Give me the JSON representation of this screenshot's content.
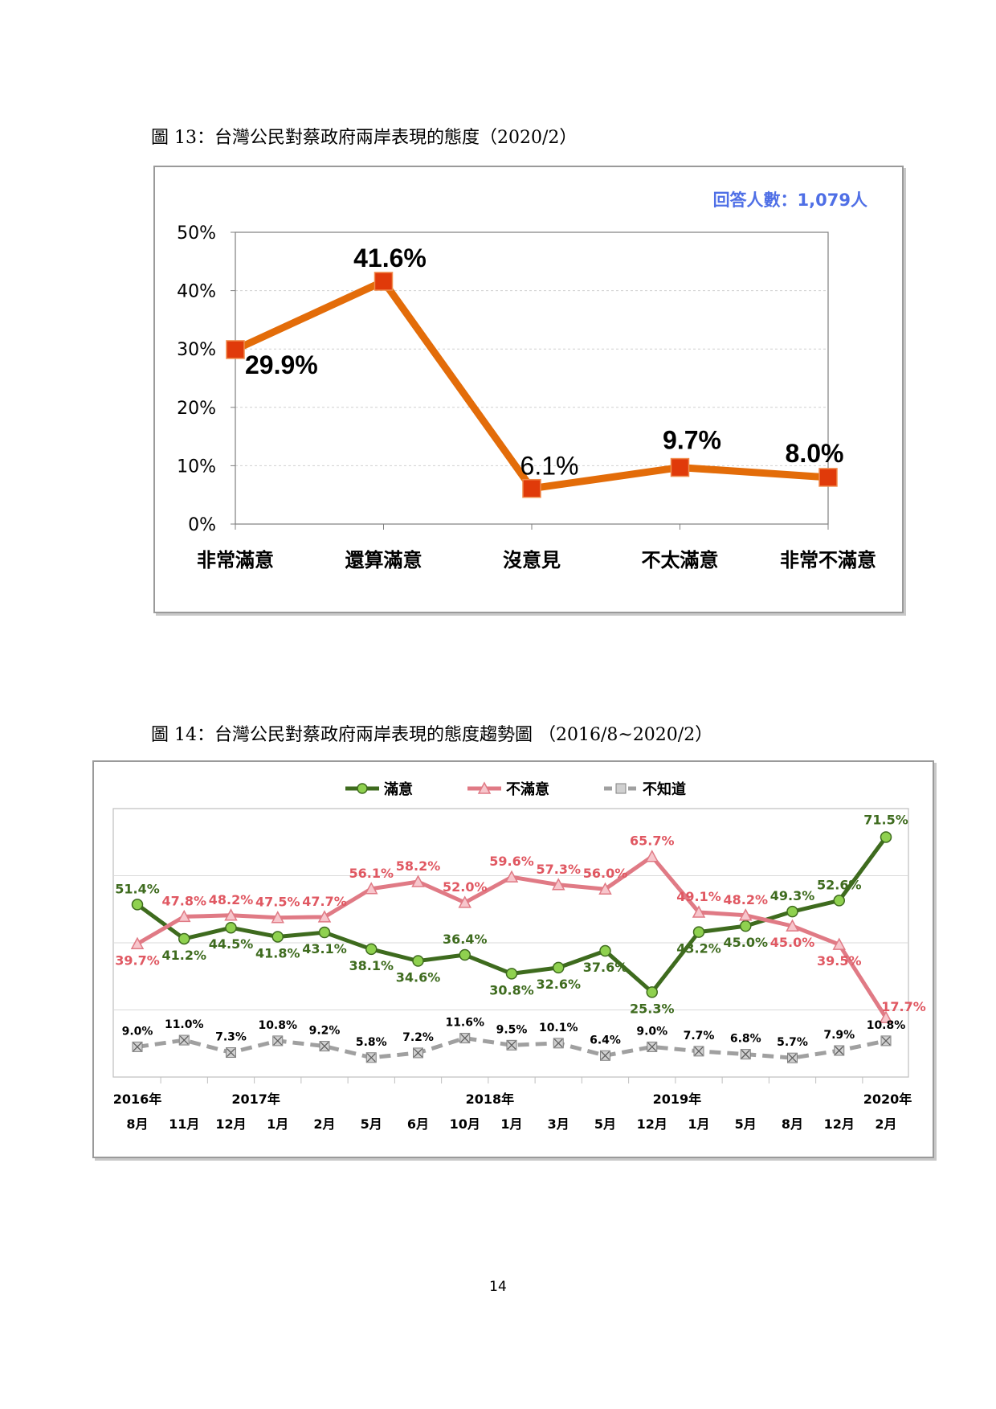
{
  "figure13": {
    "caption": "圖 13：台灣公民對蔡政府兩岸表現的態度（2020/2）",
    "respondents": "回答人數：1,079人",
    "chart_data": {
      "type": "line",
      "categories": [
        "非常滿意",
        "還算滿意",
        "沒意見",
        "不太滿意",
        "非常不滿意"
      ],
      "values": [
        29.9,
        41.6,
        6.1,
        9.7,
        8.0
      ],
      "data_labels": [
        "29.9%",
        "41.6%",
        "6.1%",
        "9.7%",
        "8.0%"
      ],
      "y_ticks": [
        "0%",
        "10%",
        "20%",
        "30%",
        "40%",
        "50%"
      ],
      "ylim": [
        0,
        50
      ],
      "grid": true,
      "colors": {
        "line": "#E36C09",
        "marker": "#E03A0A",
        "respondents": "#4F6FE6"
      }
    }
  },
  "figure14": {
    "caption": "圖 14：台灣公民對蔡政府兩岸表現的態度趨勢圖 （2016/8~2020/2）",
    "chart_data": {
      "type": "line",
      "x_months": [
        "8月",
        "11月",
        "12月",
        "1月",
        "2月",
        "5月",
        "6月",
        "10月",
        "1月",
        "3月",
        "5月",
        "12月",
        "1月",
        "5月",
        "8月",
        "12月",
        "2月"
      ],
      "x_years": [
        {
          "label": "2016年",
          "index": 0
        },
        {
          "label": "2017年",
          "index": 3
        },
        {
          "label": "2018年",
          "index": 8
        },
        {
          "label": "2019年",
          "index": 12
        },
        {
          "label": "2020年",
          "index": 16
        }
      ],
      "ylim": [
        0,
        80
      ],
      "grid": true,
      "legend_position": "top",
      "series": [
        {
          "name": "滿意",
          "color": "#3E6B1E",
          "marker": "circle",
          "values": [
            51.4,
            41.2,
            44.5,
            41.8,
            43.1,
            38.1,
            34.6,
            36.4,
            30.8,
            32.6,
            37.6,
            25.3,
            43.2,
            45.0,
            49.3,
            52.6,
            71.5
          ],
          "labels": [
            "51.4%",
            "41.2%",
            "44.5%",
            "41.8%",
            "43.1%",
            "38.1%",
            "34.6%",
            "36.4%",
            "30.8%",
            "32.6%",
            "37.6%",
            "25.3%",
            "43.2%",
            "45.0%",
            "49.3%",
            "52.6%",
            "71.5%"
          ]
        },
        {
          "name": "不滿意",
          "color": "#E07A85",
          "marker": "triangle",
          "values": [
            39.7,
            47.8,
            48.2,
            47.5,
            47.7,
            56.1,
            58.2,
            52.0,
            59.6,
            57.3,
            56.0,
            65.7,
            49.1,
            48.2,
            45.0,
            39.5,
            17.7
          ],
          "labels": [
            "39.7%",
            "47.8%",
            "48.2%",
            "47.5%",
            "47.7%",
            "56.1%",
            "58.2%",
            "52.0%",
            "59.6%",
            "57.3%",
            "56.0%",
            "65.7%",
            "49.1%",
            "48.2%",
            "45.0%",
            "39.5%",
            "17.7%"
          ]
        },
        {
          "name": "不知道",
          "color": "#A0A0A0",
          "marker": "x-square",
          "values": [
            9.0,
            11.0,
            7.3,
            10.8,
            9.2,
            5.8,
            7.2,
            11.6,
            9.5,
            10.1,
            6.4,
            9.0,
            7.7,
            6.8,
            5.7,
            7.9,
            10.8
          ],
          "labels": [
            "9.0%",
            "11.0%",
            "7.3%",
            "10.8%",
            "9.2%",
            "5.8%",
            "7.2%",
            "11.6%",
            "9.5%",
            "10.1%",
            "6.4%",
            "9.0%",
            "7.7%",
            "6.8%",
            "5.7%",
            "7.9%",
            "10.8%"
          ]
        }
      ]
    }
  },
  "page_number": "14"
}
